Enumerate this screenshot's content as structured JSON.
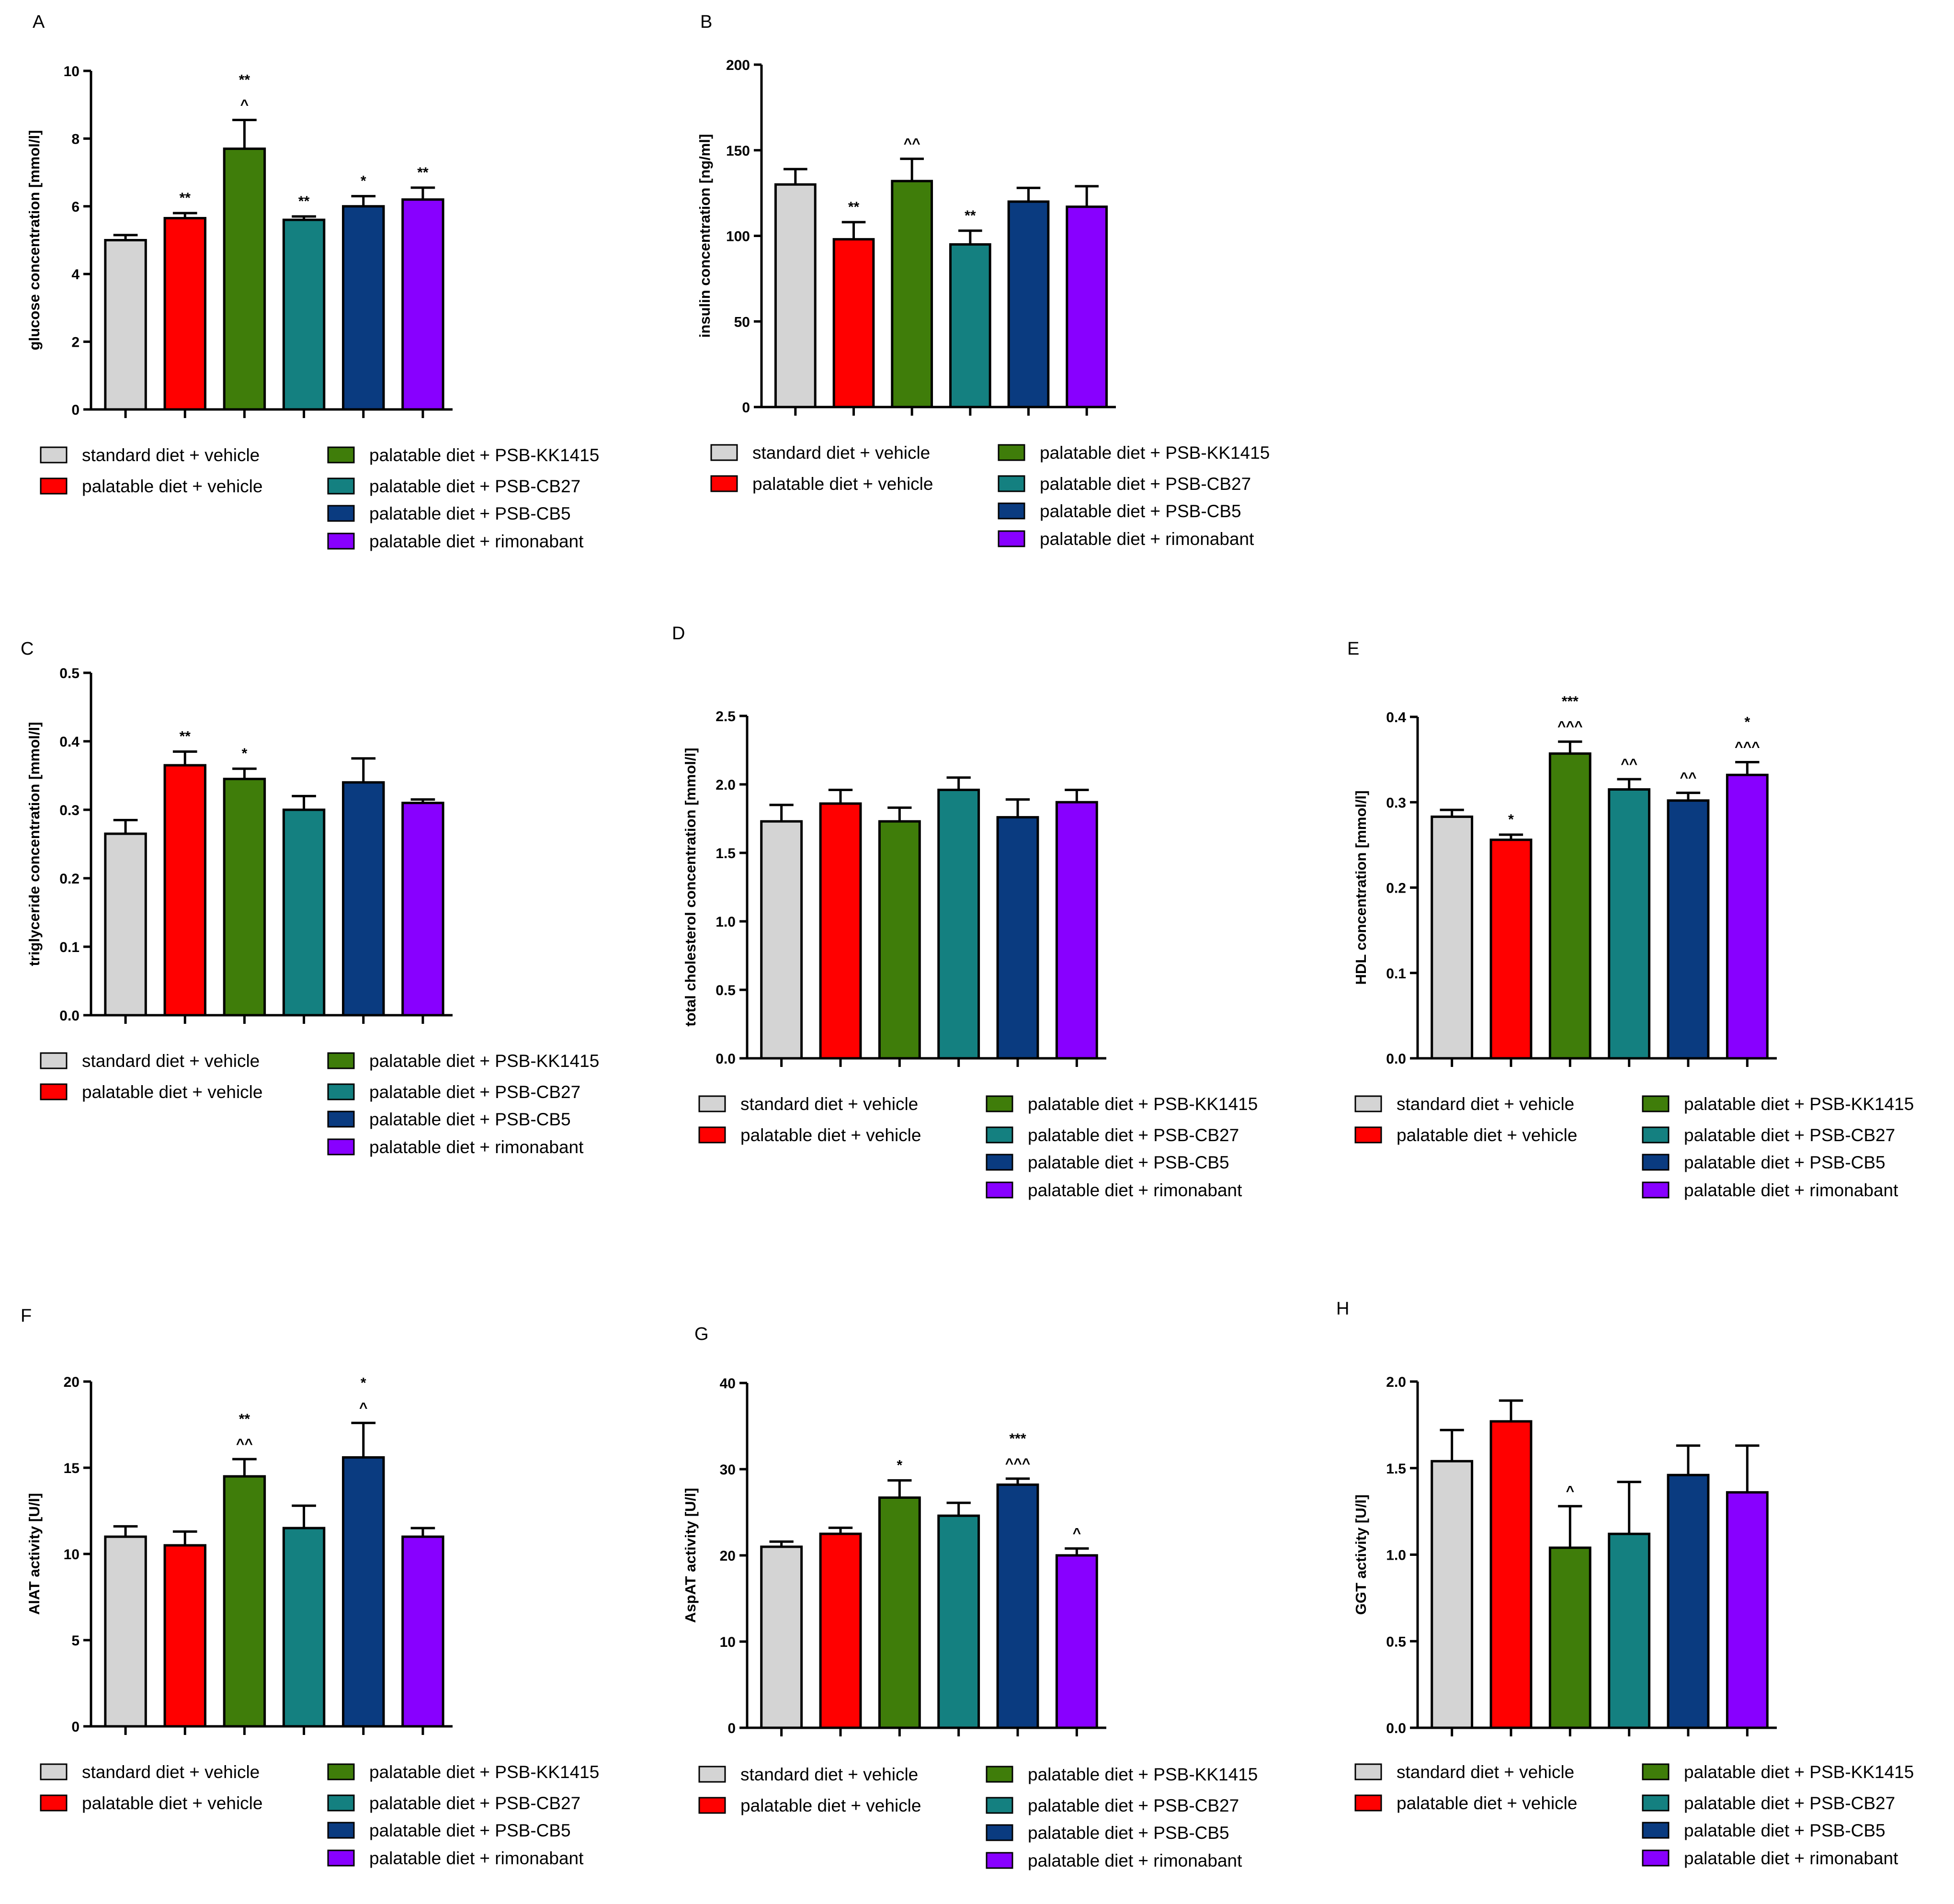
{
  "colors": {
    "standard_vehicle": "#d4d4d4",
    "palatable_vehicle": "#ff0000",
    "psb_kk1415": "#3f7d0a",
    "psb_cb27": "#148080",
    "psb_cb5": "#0a3b80",
    "rimonabant": "#8800ff",
    "axis": "#000000"
  },
  "legend": [
    {
      "label": "standard diet + vehicle",
      "color_key": "standard_vehicle"
    },
    {
      "label": "palatable diet + vehicle",
      "color_key": "palatable_vehicle"
    },
    {
      "label": "palatable diet + PSB-KK1415",
      "color_key": "psb_kk1415"
    },
    {
      "label": "palatable diet + PSB-CB27",
      "color_key": "psb_cb27"
    },
    {
      "label": "palatable diet + PSB-CB5",
      "color_key": "psb_cb5"
    },
    {
      "label": "palatable diet + rimonabant",
      "color_key": "rimonabant"
    }
  ],
  "chart_data": [
    {
      "panel": "A",
      "type": "bar",
      "ylabel": "glucose concentration [mmol/l]",
      "ylim": [
        0,
        10
      ],
      "yticks": [
        0,
        2,
        4,
        6,
        8,
        10
      ],
      "categories": [
        "standard diet + vehicle",
        "palatable diet + vehicle",
        "palatable diet + PSB-KK1415",
        "palatable diet + PSB-CB27",
        "palatable diet + PSB-CB5",
        "palatable diet + rimonabant"
      ],
      "values": [
        5.0,
        5.65,
        7.7,
        5.6,
        6.0,
        6.2
      ],
      "errors": [
        0.15,
        0.15,
        0.85,
        0.1,
        0.3,
        0.35
      ],
      "annotations": [
        [],
        [
          "**"
        ],
        [
          "**",
          "^"
        ],
        [
          "**"
        ],
        [
          "*"
        ],
        [
          "**"
        ]
      ]
    },
    {
      "panel": "B",
      "type": "bar",
      "ylabel": "insulin concentration [ng/ml]",
      "ylim": [
        0,
        200
      ],
      "yticks": [
        0,
        50,
        100,
        150,
        200
      ],
      "categories": [
        "standard diet + vehicle",
        "palatable diet + vehicle",
        "palatable diet + PSB-KK1415",
        "palatable diet + PSB-CB27",
        "palatable diet + PSB-CB5",
        "palatable diet + rimonabant"
      ],
      "values": [
        130,
        98,
        132,
        95,
        120,
        117
      ],
      "errors": [
        9,
        10,
        13,
        8,
        8,
        12
      ],
      "annotations": [
        [],
        [
          "**"
        ],
        [
          "^^"
        ],
        [
          "**"
        ],
        [],
        []
      ]
    },
    {
      "panel": "C",
      "type": "bar",
      "ylabel": "triglyceride concentration [mmol/l]",
      "ylim": [
        0,
        0.5
      ],
      "yticks": [
        "0.0",
        "0.1",
        "0.2",
        "0.3",
        "0.4",
        "0.5"
      ],
      "categories": [
        "standard diet + vehicle",
        "palatable diet + vehicle",
        "palatable diet + PSB-KK1415",
        "palatable diet + PSB-CB27",
        "palatable diet + PSB-CB5",
        "palatable diet + rimonabant"
      ],
      "values": [
        0.265,
        0.365,
        0.345,
        0.3,
        0.34,
        0.31
      ],
      "errors": [
        0.02,
        0.02,
        0.015,
        0.02,
        0.035,
        0.005
      ],
      "annotations": [
        [],
        [
          "**"
        ],
        [
          "*"
        ],
        [],
        [],
        []
      ]
    },
    {
      "panel": "D",
      "type": "bar",
      "ylabel": "total cholesterol concentration [mmol/l]",
      "ylim": [
        0,
        2.5
      ],
      "yticks": [
        "0.0",
        "0.5",
        "1.0",
        "1.5",
        "2.0",
        "2.5"
      ],
      "categories": [
        "standard diet + vehicle",
        "palatable diet + vehicle",
        "palatable diet + PSB-KK1415",
        "palatable diet + PSB-CB27",
        "palatable diet + PSB-CB5",
        "palatable diet + rimonabant"
      ],
      "values": [
        1.73,
        1.86,
        1.73,
        1.96,
        1.76,
        1.87
      ],
      "errors": [
        0.12,
        0.1,
        0.1,
        0.09,
        0.13,
        0.09
      ],
      "annotations": [
        [],
        [],
        [],
        [],
        [],
        []
      ]
    },
    {
      "panel": "E",
      "type": "bar",
      "ylabel": "HDL concentration [mmol/l]",
      "ylim": [
        0,
        0.4
      ],
      "yticks": [
        "0.0",
        "0.1",
        "0.2",
        "0.3",
        "0.4"
      ],
      "categories": [
        "standard diet + vehicle",
        "palatable diet + vehicle",
        "palatable diet + PSB-KK1415",
        "palatable diet + PSB-CB27",
        "palatable diet + PSB-CB5",
        "palatable diet + rimonabant"
      ],
      "values": [
        0.283,
        0.256,
        0.357,
        0.315,
        0.302,
        0.332
      ],
      "errors": [
        0.008,
        0.006,
        0.014,
        0.012,
        0.009,
        0.015
      ],
      "annotations": [
        [],
        [
          "*"
        ],
        [
          "***",
          "^^^"
        ],
        [
          "^^"
        ],
        [
          "^^"
        ],
        [
          "*",
          "^^^"
        ]
      ]
    },
    {
      "panel": "F",
      "type": "bar",
      "ylabel": "AlAT activity [U/l]",
      "ylim": [
        0,
        20
      ],
      "yticks": [
        0,
        5,
        10,
        15,
        20
      ],
      "categories": [
        "standard diet + vehicle",
        "palatable diet + vehicle",
        "palatable diet + PSB-KK1415",
        "palatable diet + PSB-CB27",
        "palatable diet + PSB-CB5",
        "palatable diet + rimonabant"
      ],
      "values": [
        11.0,
        10.5,
        14.5,
        11.5,
        15.6,
        11.0
      ],
      "errors": [
        0.6,
        0.8,
        1.0,
        1.3,
        2.0,
        0.5
      ],
      "annotations": [
        [],
        [],
        [
          "**",
          "^^"
        ],
        [],
        [
          "*",
          "^"
        ],
        []
      ]
    },
    {
      "panel": "G",
      "type": "bar",
      "ylabel": "AspAT activity [U/l]",
      "ylim": [
        0,
        40
      ],
      "yticks": [
        0,
        10,
        20,
        30,
        40
      ],
      "categories": [
        "standard diet + vehicle",
        "palatable diet + vehicle",
        "palatable diet + PSB-KK1415",
        "palatable diet + PSB-CB27",
        "palatable diet + PSB-CB5",
        "palatable diet + rimonabant"
      ],
      "values": [
        21.0,
        22.5,
        26.7,
        24.6,
        28.2,
        20.0
      ],
      "errors": [
        0.6,
        0.7,
        2.0,
        1.5,
        0.7,
        0.8
      ],
      "annotations": [
        [],
        [],
        [
          "*"
        ],
        [],
        [
          "***",
          "^^^"
        ],
        [
          "^"
        ]
      ]
    },
    {
      "panel": "H",
      "type": "bar",
      "ylabel": "GGT activity [U/l]",
      "ylim": [
        0,
        2.0
      ],
      "yticks": [
        "0.0",
        "0.5",
        "1.0",
        "1.5",
        "2.0"
      ],
      "categories": [
        "standard diet + vehicle",
        "palatable diet + vehicle",
        "palatable diet + PSB-KK1415",
        "palatable diet + PSB-CB27",
        "palatable diet + PSB-CB5",
        "palatable diet + rimonabant"
      ],
      "values": [
        1.54,
        1.77,
        1.04,
        1.12,
        1.46,
        1.36
      ],
      "errors": [
        0.18,
        0.12,
        0.24,
        0.3,
        0.17,
        0.27
      ],
      "annotations": [
        [],
        [],
        [
          "^"
        ],
        [],
        [],
        []
      ]
    }
  ]
}
